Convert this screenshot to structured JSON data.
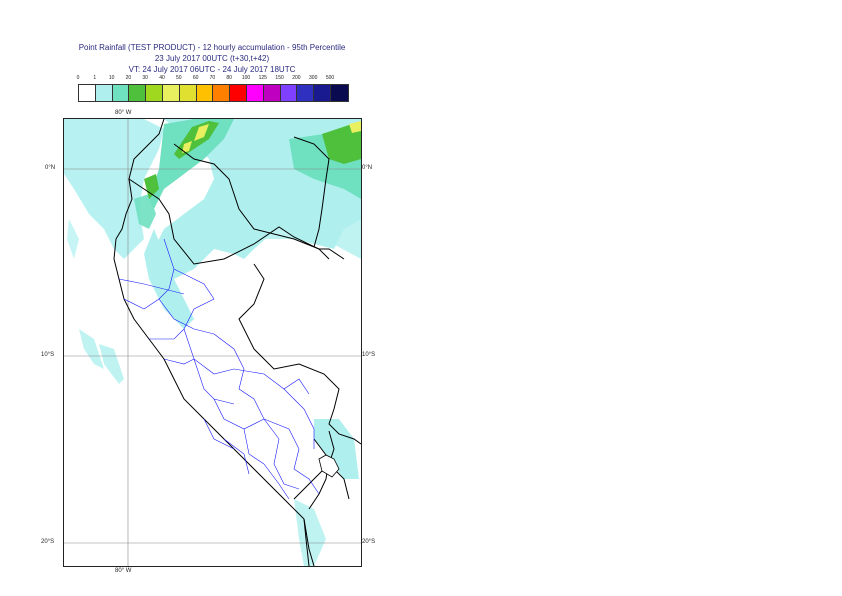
{
  "title": {
    "line1": "Point Rainfall (TEST PRODUCT) - 12 hourly accumulation - 95th Percentile",
    "line2": "23 July 2017 00UTC (t+30,t+42)",
    "line3": "VT: 24 July 2017 06UTC - 24 July 2017 18UTC"
  },
  "legend": {
    "thresholds": [
      "0",
      "1",
      "10",
      "20",
      "30",
      "40",
      "50",
      "60",
      "70",
      "80",
      "100",
      "125",
      "150",
      "200",
      "300",
      "500"
    ],
    "colors": [
      "#ffffff",
      "#aff0ef",
      "#6fe0c0",
      "#4ec03c",
      "#a0d820",
      "#e8f060",
      "#e0e030",
      "#ffc000",
      "#ff8000",
      "#ff0000",
      "#ff00ff",
      "#c000c0",
      "#8040ff",
      "#3030c0",
      "#1a1a90",
      "#0a0a50"
    ]
  },
  "map": {
    "lon_label_top": "80° W",
    "lon_label_bottom": "80° W",
    "lat_labels": [
      "0°N",
      "10°S",
      "20°S"
    ]
  }
}
